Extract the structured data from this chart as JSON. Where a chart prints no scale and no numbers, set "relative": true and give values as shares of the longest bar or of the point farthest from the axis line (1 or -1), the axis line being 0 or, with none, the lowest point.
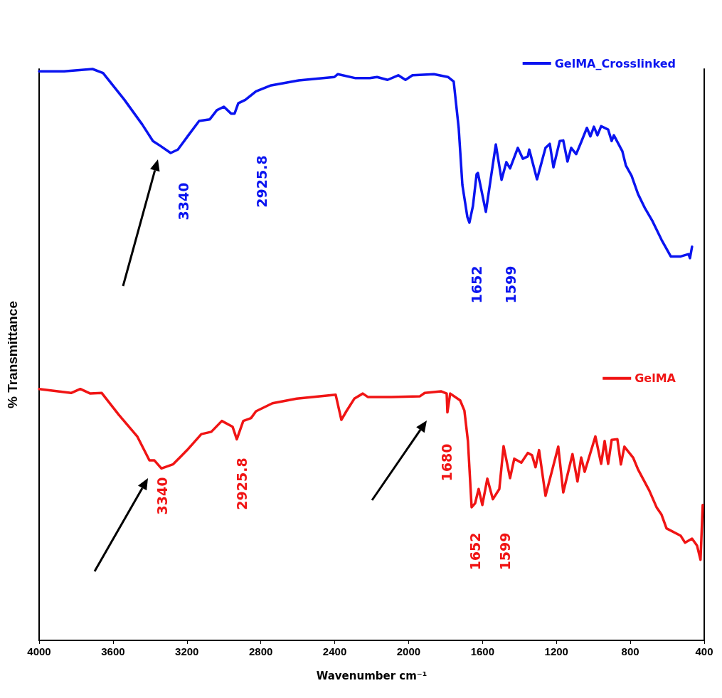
{
  "chart_data": {
    "type": "line",
    "xlabel": "Wavenumber cm⁻¹",
    "ylabel": "% Transmittance",
    "relative": true,
    "xlim": [
      4000,
      400
    ],
    "xticks": [
      4000,
      3600,
      3200,
      2800,
      2400,
      2000,
      1600,
      1200,
      800,
      400
    ],
    "legend": "top right",
    "grid": false,
    "marker": "none",
    "line_style": "solid",
    "series": [
      {
        "name": "GelMA_Crosslinked",
        "color": "#0a14f0",
        "x": [
          4000,
          3865,
          3711,
          3654,
          3538,
          3442,
          3384,
          3346,
          3288,
          3249,
          3192,
          3134,
          3076,
          3038,
          3000,
          2961,
          2942,
          2922,
          2884,
          2826,
          2749,
          2595,
          2402,
          2383,
          2287,
          2210,
          2171,
          2114,
          2056,
          2017,
          1979,
          1863,
          1787,
          1756,
          1729,
          1709,
          1682,
          1671,
          1652,
          1632,
          1625,
          1582,
          1528,
          1497,
          1471,
          1451,
          1409,
          1382,
          1355,
          1347,
          1305,
          1259,
          1236,
          1216,
          1182,
          1163,
          1140,
          1120,
          1093,
          1066,
          1035,
          1016,
          997,
          978,
          958,
          920,
          901,
          889,
          843,
          824,
          793,
          758,
          720,
          682,
          631,
          581,
          527,
          485,
          477,
          466
        ],
        "values": [
          0.996,
          0.996,
          1.0,
          0.993,
          0.946,
          0.903,
          0.874,
          0.866,
          0.853,
          0.859,
          0.884,
          0.909,
          0.912,
          0.928,
          0.934,
          0.922,
          0.922,
          0.94,
          0.946,
          0.961,
          0.971,
          0.98,
          0.986,
          0.991,
          0.984,
          0.984,
          0.986,
          0.981,
          0.989,
          0.981,
          0.989,
          0.991,
          0.986,
          0.978,
          0.897,
          0.797,
          0.741,
          0.731,
          0.76,
          0.816,
          0.818,
          0.75,
          0.868,
          0.806,
          0.837,
          0.826,
          0.862,
          0.843,
          0.847,
          0.859,
          0.807,
          0.862,
          0.869,
          0.828,
          0.874,
          0.875,
          0.838,
          0.862,
          0.851,
          0.872,
          0.897,
          0.882,
          0.899,
          0.884,
          0.9,
          0.894,
          0.874,
          0.884,
          0.856,
          0.831,
          0.813,
          0.781,
          0.756,
          0.735,
          0.701,
          0.672,
          0.672,
          0.676,
          0.669,
          0.689
        ]
      },
      {
        "name": "GelMA",
        "color": "#f01414",
        "x": [
          4000,
          3827,
          3777,
          3723,
          3661,
          3569,
          3469,
          3403,
          3376,
          3338,
          3276,
          3199,
          3122,
          3068,
          3011,
          2953,
          2930,
          2895,
          2853,
          2826,
          2737,
          2606,
          2395,
          2364,
          2337,
          2294,
          2248,
          2221,
          2094,
          1940,
          1913,
          1825,
          1794,
          1790,
          1775,
          1721,
          1698,
          1679,
          1659,
          1640,
          1621,
          1601,
          1574,
          1544,
          1509,
          1486,
          1451,
          1428,
          1390,
          1355,
          1332,
          1313,
          1294,
          1259,
          1190,
          1163,
          1113,
          1086,
          1066,
          1047,
          989,
          958,
          939,
          920,
          901,
          870,
          851,
          832,
          785,
          758,
          697,
          658,
          631,
          604,
          527,
          504,
          466,
          439,
          420,
          408
        ],
        "values": [
          0.44,
          0.433,
          0.44,
          0.432,
          0.433,
          0.395,
          0.357,
          0.315,
          0.315,
          0.301,
          0.308,
          0.333,
          0.361,
          0.365,
          0.384,
          0.374,
          0.352,
          0.384,
          0.389,
          0.401,
          0.415,
          0.423,
          0.43,
          0.386,
          0.401,
          0.423,
          0.432,
          0.426,
          0.426,
          0.427,
          0.433,
          0.436,
          0.432,
          0.399,
          0.432,
          0.42,
          0.402,
          0.349,
          0.233,
          0.24,
          0.265,
          0.237,
          0.283,
          0.247,
          0.265,
          0.34,
          0.284,
          0.318,
          0.311,
          0.328,
          0.324,
          0.303,
          0.333,
          0.253,
          0.339,
          0.259,
          0.326,
          0.278,
          0.32,
          0.295,
          0.357,
          0.309,
          0.349,
          0.309,
          0.351,
          0.352,
          0.308,
          0.339,
          0.32,
          0.299,
          0.262,
          0.233,
          0.22,
          0.196,
          0.183,
          0.171,
          0.178,
          0.166,
          0.141,
          0.237
        ]
      }
    ],
    "annotations": [
      "3340",
      "2925.8",
      "1652",
      "1599",
      "3340",
      "2925.8",
      "1680",
      "1652",
      "1599"
    ]
  }
}
